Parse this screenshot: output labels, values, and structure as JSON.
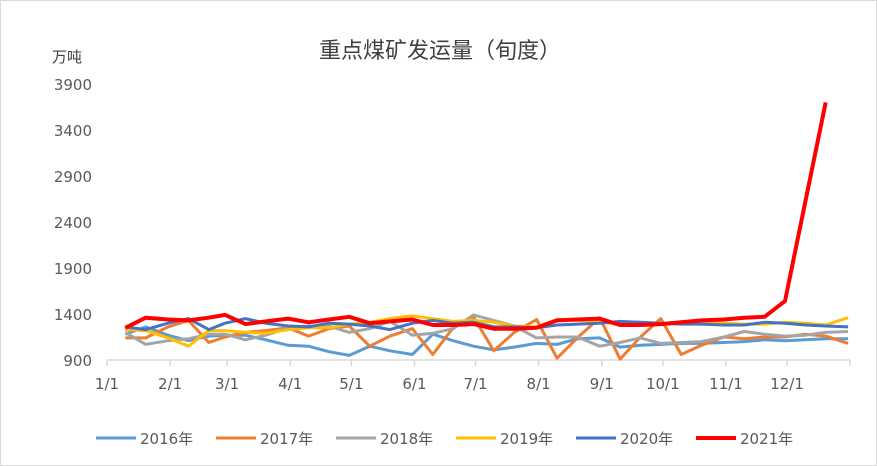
{
  "chart_data": {
    "type": "line",
    "title": "重点煤矿发运量（旬度）",
    "ylabel": "万吨",
    "xlabel": "",
    "ylim": [
      900,
      3900
    ],
    "yticks": [
      900,
      1400,
      1900,
      2400,
      2900,
      3400,
      3900
    ],
    "xticks": [
      "1/1",
      "2/1",
      "3/1",
      "4/1",
      "5/1",
      "6/1",
      "7/1",
      "8/1",
      "9/1",
      "10/1",
      "11/1",
      "12/1"
    ],
    "grid": false,
    "legend": "bottom",
    "x": [
      "1/10",
      "1/20",
      "1/31",
      "2/10",
      "2/20",
      "2/28",
      "3/10",
      "3/20",
      "3/31",
      "4/10",
      "4/20",
      "4/30",
      "5/10",
      "5/20",
      "5/31",
      "6/10",
      "6/20",
      "6/30",
      "7/10",
      "7/20",
      "7/31",
      "8/10",
      "8/20",
      "8/31",
      "9/10",
      "9/20",
      "9/30",
      "10/10",
      "10/20",
      "10/31",
      "11/10",
      "11/20",
      "11/30",
      "12/10",
      "12/20",
      "12/31"
    ],
    "series": [
      {
        "name": "2016年",
        "color": "#5b9bd5",
        "values": [
          1180,
          1260,
          1170,
          1110,
          1160,
          1170,
          1170,
          1120,
          1060,
          1050,
          990,
          950,
          1050,
          1000,
          960,
          1180,
          1110,
          1050,
          1010,
          1040,
          1080,
          1070,
          1130,
          1140,
          1040,
          1060,
          1070,
          1080,
          1080,
          1090,
          1100,
          1120,
          1110,
          1120,
          1130,
          1130
        ]
      },
      {
        "name": "2017年",
        "color": "#ed7d31",
        "values": [
          1140,
          1140,
          1260,
          1330,
          1090,
          1150,
          1200,
          1220,
          1250,
          1160,
          1240,
          1270,
          1050,
          1160,
          1240,
          960,
          1250,
          1370,
          1000,
          1200,
          1340,
          920,
          1140,
          1360,
          910,
          1150,
          1350,
          960,
          1060,
          1150,
          1130,
          1150,
          1150,
          1180,
          1160,
          1080
        ]
      },
      {
        "name": "2018年",
        "color": "#a5a5a5",
        "values": [
          1200,
          1070,
          1110,
          1130,
          1180,
          1180,
          1120,
          1170,
          1250,
          1270,
          1270,
          1200,
          1240,
          1320,
          1170,
          1190,
          1240,
          1390,
          1330,
          1270,
          1140,
          1150,
          1150,
          1050,
          1090,
          1140,
          1080,
          1090,
          1100,
          1150,
          1210,
          1180,
          1160,
          1170,
          1200,
          1210
        ]
      },
      {
        "name": "2019年",
        "color": "#ffc000",
        "values": [
          1230,
          1220,
          1140,
          1050,
          1220,
          1220,
          1200,
          1190,
          1230,
          1250,
          1250,
          1290,
          1310,
          1350,
          1380,
          1350,
          1320,
          1330,
          1310,
          1270,
          1260,
          1340,
          1330,
          1320,
          1280,
          1280,
          1290,
          1300,
          1310,
          1300,
          1290,
          1290,
          1310,
          1300,
          1280,
          1360
        ]
      },
      {
        "name": "2020年",
        "color": "#4472c4",
        "values": [
          1260,
          1230,
          1300,
          1350,
          1230,
          1300,
          1350,
          1300,
          1270,
          1260,
          1300,
          1290,
          1270,
          1230,
          1300,
          1330,
          1300,
          1310,
          1260,
          1260,
          1250,
          1280,
          1290,
          1300,
          1320,
          1310,
          1300,
          1290,
          1290,
          1280,
          1280,
          1310,
          1300,
          1280,
          1270,
          1260
        ]
      },
      {
        "name": "2021年",
        "color": "#ff0000",
        "values": [
          1250,
          1360,
          1340,
          1330,
          1360,
          1390,
          1290,
          1320,
          1350,
          1310,
          1340,
          1370,
          1300,
          1320,
          1340,
          1280,
          1280,
          1290,
          1240,
          1240,
          1250,
          1330,
          1340,
          1350,
          1280,
          1280,
          1290,
          1310,
          1330,
          1340,
          1360,
          1370,
          1540,
          2620,
          3700,
          null
        ]
      }
    ]
  }
}
